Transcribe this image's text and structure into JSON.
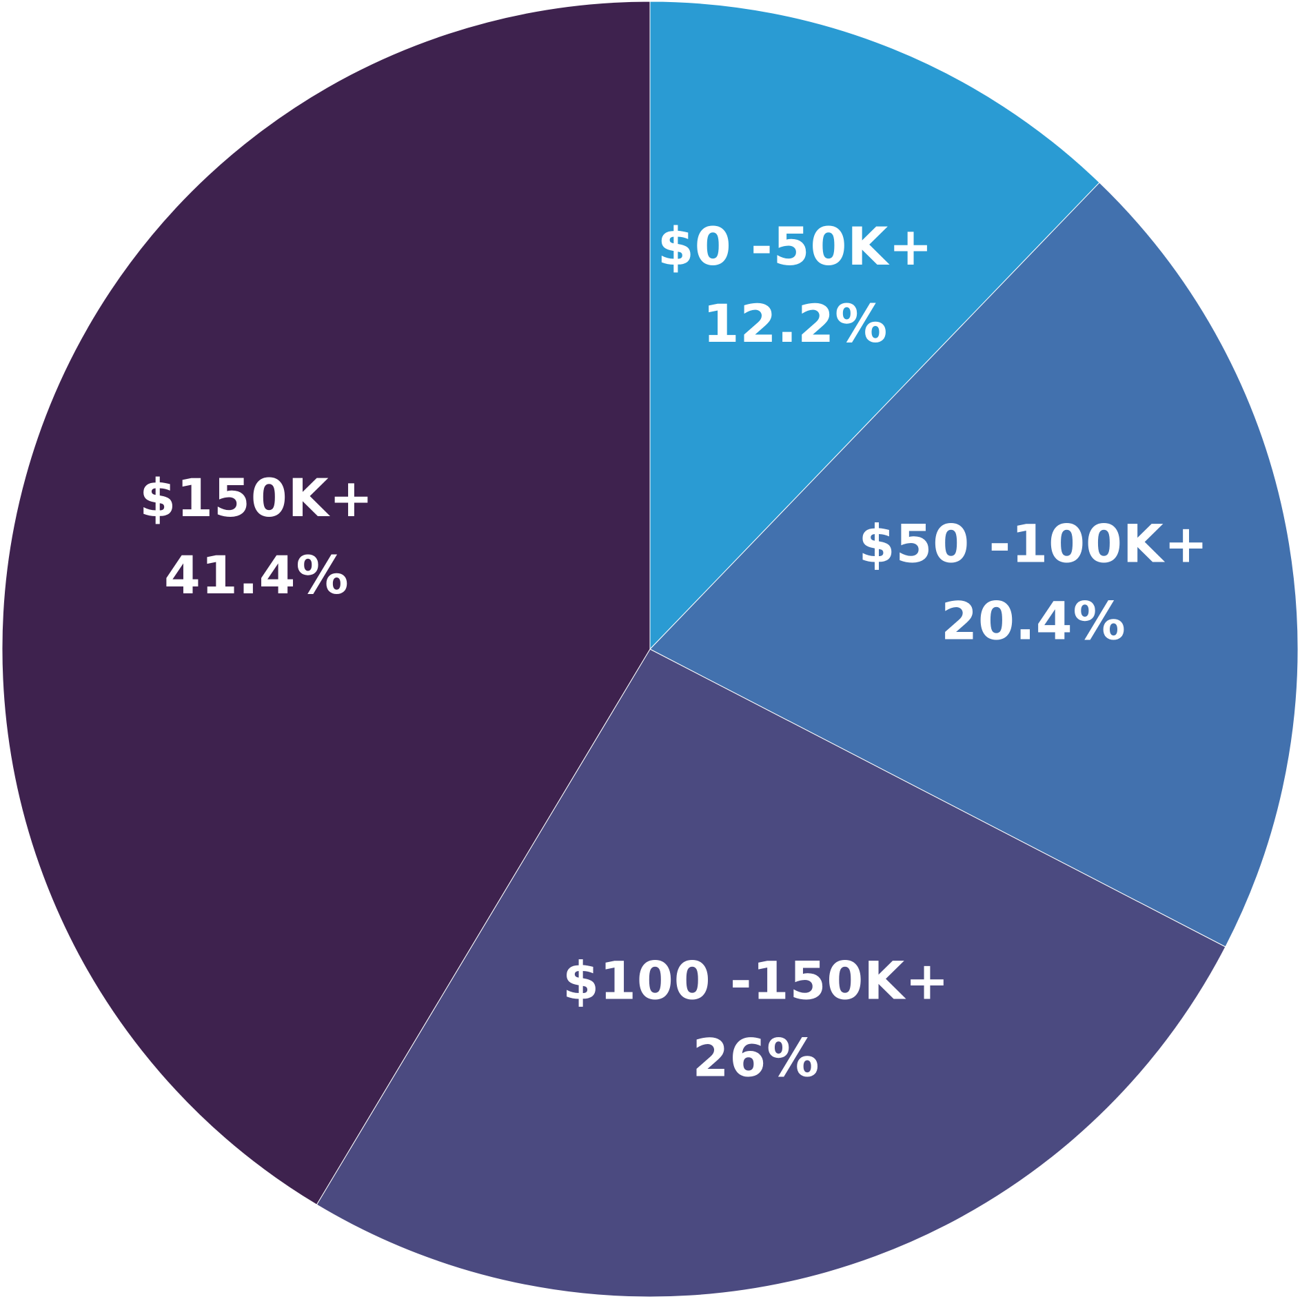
{
  "chart_data": {
    "type": "pie",
    "start_angle_deg": 0,
    "direction": "clockwise",
    "slices": [
      {
        "label": "$0 -50K+",
        "value_text": "12.2%",
        "value": 12.2,
        "color": "#2A9BD3"
      },
      {
        "label": "$50 -100K+",
        "value_text": "20.4%",
        "value": 20.4,
        "color": "#4271AE"
      },
      {
        "label": "$100 -150K+",
        "value_text": "26%",
        "value": 26,
        "color": "#4B4A80"
      },
      {
        "label": "$150K+",
        "value_text": "41.4%",
        "value": 41.4,
        "color": "#3E224E"
      }
    ]
  }
}
